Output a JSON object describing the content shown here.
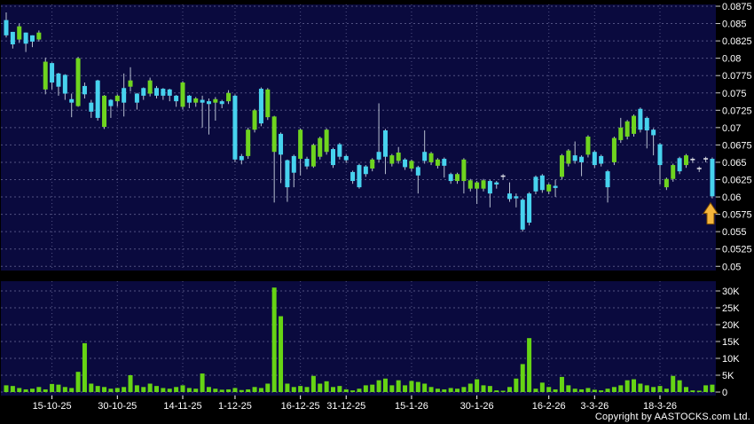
{
  "meta": {
    "copyright": "Copyright by AASTOCKS.com Ltd."
  },
  "colors": {
    "background": "#000000",
    "pane": "#0a0a3e",
    "grid": "#8c8cb8",
    "up_green": "#6fd41f",
    "down_cyan": "#47d2ee",
    "volume_green": "#66d414",
    "wick": "#b8c0d0",
    "doji_dash": "#e0e0e6",
    "text": "#ffffff",
    "arrow_fill": "#f5b63c",
    "arrow_stroke": "#7a4a00"
  },
  "price_axis": {
    "labels": [
      "0.0875",
      "0.085",
      "0.0825",
      "0.08",
      "0.0775",
      "0.075",
      "0.0725",
      "0.07",
      "0.0675",
      "0.065",
      "0.0625",
      "0.06",
      "0.0575",
      "0.055",
      "0.0525",
      "0.05"
    ],
    "min": 0.05,
    "max": 0.0875,
    "step": 0.0025
  },
  "volume_axis": {
    "labels": [
      "30K",
      "25K",
      "20K",
      "15K",
      "10K",
      "5K",
      "0"
    ],
    "values_k": [
      30,
      25,
      20,
      15,
      10,
      5,
      0
    ],
    "max_k": 30
  },
  "date_ticks": [
    {
      "label": "15-10-25",
      "index": 7
    },
    {
      "label": "30-10-25",
      "index": 17
    },
    {
      "label": "14-11-25",
      "index": 27
    },
    {
      "label": "1-12-25",
      "index": 35
    },
    {
      "label": "16-12-25",
      "index": 45
    },
    {
      "label": "31-12-25",
      "index": 52
    },
    {
      "label": "15-1-26",
      "index": 62
    },
    {
      "label": "30-1-26",
      "index": 72
    },
    {
      "label": "16-2-26",
      "index": 83
    },
    {
      "label": "3-3-26",
      "index": 90
    },
    {
      "label": "18-3-26",
      "index": 100
    }
  ],
  "chart_data": {
    "type": "candlestick+volume",
    "legend_position": "none",
    "grid": true,
    "price_range": [
      0.05,
      0.0875
    ],
    "volume_range_k": [
      0,
      30
    ],
    "candle_format": [
      "body_high",
      "body_low",
      "high",
      "low",
      "direction g=green c=cyan",
      "volume_K"
    ],
    "signal_arrow": {
      "type": "up-arrow",
      "at_index": 108,
      "below_price": 0.0598
    },
    "candles": [
      [
        0.0855,
        0.0833,
        0.0866,
        0.083,
        "c",
        2
      ],
      [
        0.0838,
        0.082,
        0.0838,
        0.0814,
        "c",
        1.8
      ],
      [
        0.0846,
        0.0827,
        0.085,
        0.0822,
        "g",
        1.2
      ],
      [
        0.0837,
        0.0821,
        0.0837,
        0.0809,
        "c",
        0.8
      ],
      [
        0.0833,
        0.0824,
        0.0833,
        0.0816,
        "c",
        1
      ],
      [
        0.0837,
        0.0827,
        0.084,
        0.0824,
        "g",
        1.5
      ],
      [
        0.0795,
        0.0755,
        0.0801,
        0.0748,
        "g",
        0.8
      ],
      [
        0.0793,
        0.0765,
        0.0794,
        0.0755,
        "c",
        2.4
      ],
      [
        0.0778,
        0.0759,
        0.0779,
        0.0746,
        "c",
        2.2
      ],
      [
        0.0776,
        0.0749,
        0.0777,
        0.074,
        "c",
        1.5
      ],
      [
        0.0741,
        0.0736,
        0.0749,
        0.0715,
        "c",
        1.2
      ],
      [
        0.08,
        0.0731,
        0.0802,
        0.073,
        "g",
        6
      ],
      [
        0.076,
        0.0748,
        0.0765,
        0.0742,
        "c",
        14.5
      ],
      [
        0.0736,
        0.0723,
        0.074,
        0.0714,
        "c",
        2.5
      ],
      [
        0.0768,
        0.0714,
        0.0769,
        0.071,
        "c",
        1.8
      ],
      [
        0.0746,
        0.0701,
        0.0747,
        0.0698,
        "g",
        1.5
      ],
      [
        0.074,
        0.0731,
        0.0741,
        0.0714,
        "c",
        1
      ],
      [
        0.0746,
        0.0738,
        0.0748,
        0.073,
        "g",
        1.2
      ],
      [
        0.0757,
        0.0736,
        0.0778,
        0.0716,
        "c",
        1.5
      ],
      [
        0.0768,
        0.0759,
        0.0787,
        0.0752,
        "g",
        5
      ],
      [
        0.0749,
        0.0736,
        0.075,
        0.0726,
        "c",
        2
      ],
      [
        0.0757,
        0.0746,
        0.0758,
        0.074,
        "c",
        1.5
      ],
      [
        0.0768,
        0.0749,
        0.0772,
        0.0745,
        "g",
        2.5
      ],
      [
        0.0757,
        0.0746,
        0.076,
        0.0742,
        "c",
        1.8
      ],
      [
        0.0756,
        0.0746,
        0.0757,
        0.074,
        "c",
        1.2
      ],
      [
        0.0755,
        0.0746,
        0.0756,
        0.0738,
        "c",
        1
      ],
      [
        0.0746,
        0.0738,
        0.0747,
        0.073,
        "c",
        1.5
      ],
      [
        0.0765,
        0.073,
        0.0767,
        0.0726,
        "g",
        2
      ],
      [
        0.0746,
        0.0736,
        0.0747,
        0.0728,
        "c",
        1.2
      ],
      [
        0.0742,
        0.0736,
        0.0744,
        0.073,
        "g",
        1
      ],
      [
        0.074,
        0.0736,
        0.0746,
        0.07,
        "c",
        5.5
      ],
      [
        0.0738,
        0.0734,
        0.0742,
        0.069,
        "c",
        1.5
      ],
      [
        0.0741,
        0.0736,
        0.0744,
        0.071,
        "g",
        1
      ],
      [
        0.0738,
        0.0734,
        0.074,
        0.0728,
        "c",
        0.7
      ],
      [
        0.075,
        0.0738,
        0.0754,
        0.0734,
        "g",
        0.8
      ],
      [
        0.0746,
        0.0654,
        0.0748,
        0.065,
        "c",
        1.2
      ],
      [
        0.0659,
        0.0653,
        0.0662,
        0.0647,
        "c",
        0.6
      ],
      [
        0.0697,
        0.0659,
        0.07,
        0.0655,
        "g",
        0.8
      ],
      [
        0.0725,
        0.0697,
        0.0727,
        0.0693,
        "g",
        1.5
      ],
      [
        0.0756,
        0.0706,
        0.0758,
        0.0702,
        "c",
        1.2
      ],
      [
        0.0755,
        0.0715,
        0.0757,
        0.0711,
        "g",
        2.5
      ],
      [
        0.0716,
        0.0665,
        0.0717,
        0.0592,
        "g",
        31
      ],
      [
        0.0691,
        0.0661,
        0.0693,
        0.062,
        "c",
        22.5
      ],
      [
        0.0653,
        0.0614,
        0.0654,
        0.0593,
        "c",
        2.5
      ],
      [
        0.0659,
        0.0635,
        0.0661,
        0.0614,
        "c",
        1.5
      ],
      [
        0.0697,
        0.0655,
        0.0699,
        0.0631,
        "g",
        1.8
      ],
      [
        0.0655,
        0.0644,
        0.0658,
        0.064,
        "c",
        1.5
      ],
      [
        0.0675,
        0.0644,
        0.0677,
        0.0642,
        "g",
        4.8
      ],
      [
        0.0685,
        0.0658,
        0.0687,
        0.0654,
        "g",
        2.5
      ],
      [
        0.0697,
        0.0665,
        0.0699,
        0.0661,
        "g",
        3.2
      ],
      [
        0.0669,
        0.0646,
        0.0671,
        0.0642,
        "c",
        1.5
      ],
      [
        0.0676,
        0.0658,
        0.0678,
        0.0654,
        "c",
        1.8
      ],
      [
        0.0659,
        0.0653,
        0.0661,
        0.0649,
        "c",
        0.8
      ],
      [
        0.0636,
        0.0623,
        0.0638,
        0.0619,
        "c",
        0.5
      ],
      [
        0.0646,
        0.0614,
        0.0648,
        0.0612,
        "c",
        1
      ],
      [
        0.0644,
        0.0633,
        0.0646,
        0.0629,
        "c",
        2
      ],
      [
        0.0654,
        0.0641,
        0.0656,
        0.0637,
        "g",
        2.2
      ],
      [
        0.0665,
        0.0654,
        0.0735,
        0.065,
        "c",
        3.5
      ],
      [
        0.0696,
        0.0658,
        0.0698,
        0.0633,
        "c",
        4
      ],
      [
        0.066,
        0.0648,
        0.0662,
        0.0644,
        "g",
        2
      ],
      [
        0.0664,
        0.0652,
        0.0672,
        0.0648,
        "g",
        3.5
      ],
      [
        0.0654,
        0.0643,
        0.0656,
        0.0639,
        "c",
        2
      ],
      [
        0.0652,
        0.0641,
        0.0654,
        0.0637,
        "g",
        3.3
      ],
      [
        0.0643,
        0.0631,
        0.0645,
        0.0605,
        "c",
        3
      ],
      [
        0.0665,
        0.0652,
        0.0696,
        0.0648,
        "c",
        2.5
      ],
      [
        0.0663,
        0.065,
        0.0665,
        0.0646,
        "g",
        1.5
      ],
      [
        0.0654,
        0.0645,
        0.0656,
        0.0641,
        "g",
        1
      ],
      [
        0.0655,
        0.0645,
        0.0657,
        0.0628,
        "c",
        0.8
      ],
      [
        0.0633,
        0.0623,
        0.0635,
        0.0619,
        "c",
        1.2
      ],
      [
        0.0633,
        0.0623,
        0.0635,
        0.0619,
        "g",
        1
      ],
      [
        0.0654,
        0.0623,
        0.0656,
        0.0605,
        "g",
        1.5
      ],
      [
        0.0624,
        0.0612,
        0.0626,
        0.0608,
        "g",
        2.5
      ],
      [
        0.0621,
        0.0612,
        0.0623,
        0.059,
        "g",
        3.8
      ],
      [
        0.0624,
        0.0612,
        0.0626,
        0.0608,
        "g",
        2
      ],
      [
        0.0623,
        0.0605,
        0.0625,
        0.0585,
        "c",
        1.8
      ],
      [
        0.0621,
        0.0618,
        0.0623,
        0.0612,
        "c",
        0.5
      ],
      [
        0.0631,
        0.0629,
        0.0633,
        0.0625,
        "c",
        0.4
      ],
      [
        0.0605,
        0.0597,
        0.0621,
        0.0593,
        "c",
        1.5
      ],
      [
        0.0601,
        0.0598,
        0.0605,
        0.0585,
        "c",
        4
      ],
      [
        0.0596,
        0.0553,
        0.0598,
        0.055,
        "c",
        8.3
      ],
      [
        0.0605,
        0.0563,
        0.0607,
        0.0559,
        "c",
        16
      ],
      [
        0.0629,
        0.0608,
        0.0631,
        0.0604,
        "c",
        1
      ],
      [
        0.0631,
        0.061,
        0.0633,
        0.0606,
        "c",
        2.8
      ],
      [
        0.0618,
        0.0608,
        0.062,
        0.0604,
        "g",
        1.5
      ],
      [
        0.0616,
        0.0613,
        0.0625,
        0.06,
        "c",
        0.8
      ],
      [
        0.066,
        0.0629,
        0.0662,
        0.0625,
        "g",
        4.5
      ],
      [
        0.0667,
        0.0648,
        0.0669,
        0.0644,
        "g",
        2
      ],
      [
        0.066,
        0.0652,
        0.068,
        0.0648,
        "c",
        1
      ],
      [
        0.0658,
        0.065,
        0.066,
        0.063,
        "c",
        0.8
      ],
      [
        0.0687,
        0.0661,
        0.0689,
        0.0657,
        "g",
        1.2
      ],
      [
        0.0665,
        0.0646,
        0.0667,
        0.0642,
        "c",
        0.7
      ],
      [
        0.0659,
        0.0648,
        0.0661,
        0.0644,
        "c",
        0.5
      ],
      [
        0.0637,
        0.0614,
        0.0639,
        0.0592,
        "c",
        1
      ],
      [
        0.0685,
        0.065,
        0.0687,
        0.0646,
        "g",
        1.5
      ],
      [
        0.07,
        0.0682,
        0.0714,
        0.0678,
        "g",
        2
      ],
      [
        0.0709,
        0.0687,
        0.0711,
        0.0683,
        "g",
        3.5
      ],
      [
        0.0717,
        0.0691,
        0.0719,
        0.0687,
        "g",
        3.8
      ],
      [
        0.0727,
        0.0697,
        0.0729,
        0.0693,
        "c",
        2.5
      ],
      [
        0.0714,
        0.0696,
        0.0716,
        0.067,
        "c",
        2
      ],
      [
        0.0697,
        0.0689,
        0.0699,
        0.066,
        "c",
        1.5
      ],
      [
        0.0676,
        0.0646,
        0.0678,
        0.0618,
        "c",
        1.8
      ],
      [
        0.0626,
        0.0614,
        0.0628,
        0.061,
        "g",
        1
      ],
      [
        0.0646,
        0.0626,
        0.0648,
        0.0622,
        "g",
        4.8
      ],
      [
        0.0656,
        0.0637,
        0.0658,
        0.0633,
        "c",
        3.5
      ],
      [
        0.066,
        0.0646,
        0.0662,
        0.0642,
        "g",
        1.5
      ],
      [
        0.0655,
        0.0653,
        0.0657,
        0.0649,
        "c",
        0.5
      ],
      [
        0.0642,
        0.064,
        0.0644,
        0.0636,
        "c",
        0.4
      ],
      [
        0.0656,
        0.0654,
        0.0658,
        0.065,
        "c",
        2
      ],
      [
        0.0655,
        0.0601,
        0.0657,
        0.0598,
        "c",
        2.2
      ]
    ]
  }
}
